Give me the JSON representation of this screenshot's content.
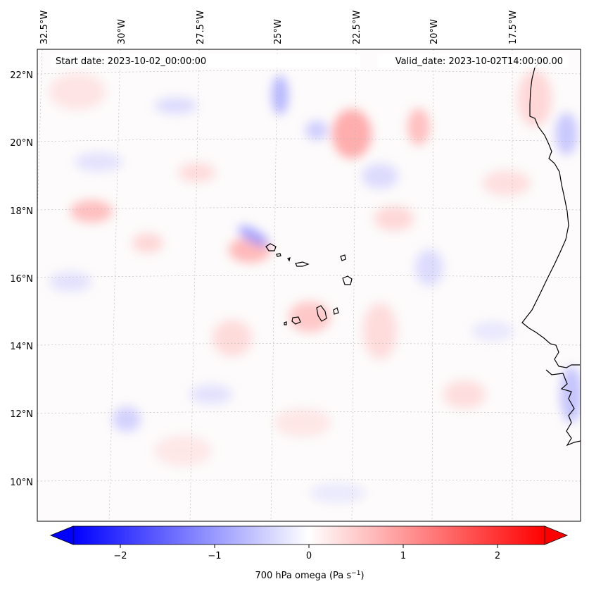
{
  "map": {
    "start_date": "Start date: 2023-10-02_00:00:00",
    "valid_date": "Valid_date: 2023-10-02T14:00:00.00",
    "lon_labels": [
      "32.5°W",
      "30°W",
      "27.5°W",
      "25°W",
      "22.5°W",
      "20°W",
      "17.5°W"
    ],
    "lat_labels": [
      "22°N",
      "20°N",
      "18°N",
      "16°N",
      "14°N",
      "12°N",
      "10°N"
    ],
    "gridlines": true,
    "features": [
      "Cape Verde islands coastline",
      "West Africa coastline (Senegal/Mauritania)"
    ]
  },
  "colorbar": {
    "label": "700 hPa omega (Pa s",
    "label_sup": "−1",
    "label_end": ")",
    "ticks": [
      "−2",
      "−1",
      "0",
      "1",
      "2"
    ],
    "colormap": "bwr",
    "min_color": "#0000ff",
    "mid_color": "#ffffff",
    "max_color": "#ff0000",
    "extend": "both"
  }
}
